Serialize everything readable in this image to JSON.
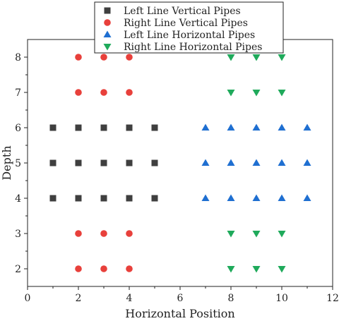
{
  "chart_data": {
    "type": "scatter",
    "title": "",
    "xlabel": "Horizontal Position",
    "ylabel": "Depth",
    "xlim": [
      0,
      12
    ],
    "ylim": [
      1.5,
      8.5
    ],
    "x_ticks": [
      0,
      2,
      4,
      6,
      8,
      10,
      12
    ],
    "y_ticks": [
      2,
      3,
      4,
      5,
      6,
      7,
      8
    ],
    "grid": false,
    "legend_position": "top",
    "series": [
      {
        "name": "Left Line Vertical Pipes",
        "marker": "square",
        "color": "#3f3f3f",
        "points": [
          [
            1,
            6
          ],
          [
            2,
            6
          ],
          [
            3,
            6
          ],
          [
            4,
            6
          ],
          [
            5,
            6
          ],
          [
            1,
            5
          ],
          [
            2,
            5
          ],
          [
            3,
            5
          ],
          [
            4,
            5
          ],
          [
            5,
            5
          ],
          [
            1,
            4
          ],
          [
            2,
            4
          ],
          [
            3,
            4
          ],
          [
            4,
            4
          ],
          [
            5,
            4
          ]
        ]
      },
      {
        "name": "Right Line Vertical Pipes",
        "marker": "circle",
        "color": "#e8403b",
        "points": [
          [
            2,
            8
          ],
          [
            3,
            8
          ],
          [
            4,
            8
          ],
          [
            2,
            7
          ],
          [
            3,
            7
          ],
          [
            4,
            7
          ],
          [
            2,
            3
          ],
          [
            3,
            3
          ],
          [
            4,
            3
          ],
          [
            2,
            2
          ],
          [
            3,
            2
          ],
          [
            4,
            2
          ]
        ]
      },
      {
        "name": "Left Line Horizontal Pipes",
        "marker": "triangle-up",
        "color": "#1f6fd1",
        "points": [
          [
            7,
            6
          ],
          [
            8,
            6
          ],
          [
            9,
            6
          ],
          [
            10,
            6
          ],
          [
            11,
            6
          ],
          [
            7,
            5
          ],
          [
            8,
            5
          ],
          [
            9,
            5
          ],
          [
            10,
            5
          ],
          [
            11,
            5
          ],
          [
            7,
            4
          ],
          [
            8,
            4
          ],
          [
            9,
            4
          ],
          [
            10,
            4
          ],
          [
            11,
            4
          ]
        ]
      },
      {
        "name": "Right Line Horizontal Pipes",
        "marker": "triangle-down",
        "color": "#1faa5b",
        "points": [
          [
            8,
            8
          ],
          [
            9,
            8
          ],
          [
            10,
            8
          ],
          [
            8,
            7
          ],
          [
            9,
            7
          ],
          [
            10,
            7
          ],
          [
            8,
            3
          ],
          [
            9,
            3
          ],
          [
            10,
            3
          ],
          [
            8,
            2
          ],
          [
            9,
            2
          ],
          [
            10,
            2
          ]
        ]
      }
    ]
  }
}
